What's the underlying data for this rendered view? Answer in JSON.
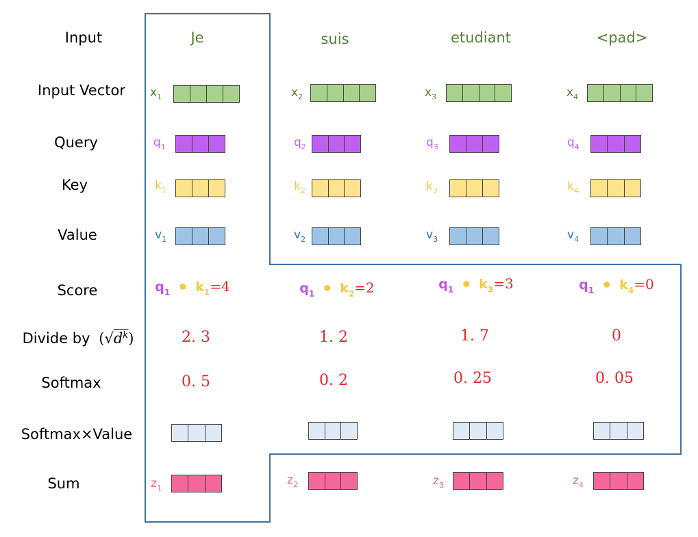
{
  "row_labels": {
    "input": "Input",
    "input_vector": "Input Vector",
    "query": "Query",
    "key": "Key",
    "value": "Value",
    "score": "Score",
    "divide_by": "Divide by",
    "softmax": "Softmax",
    "softmax_value": "Softmax×Value",
    "sum": "Sum"
  },
  "sqrt_expr": {
    "open": "(",
    "radical": "√",
    "base": "d",
    "exp": "k",
    "close": ")"
  },
  "colors": {
    "input_vector": "#a9d18e",
    "query": "#c060f0",
    "key": "#ffe28c",
    "value": "#9dc3e6",
    "softmax_value": "#deebf7",
    "sum": "#f4679a",
    "word": "#548235",
    "number": "#e8262a",
    "outline": "#41719c"
  },
  "columns": [
    {
      "word": "Je",
      "x": "x",
      "x_sub": "1",
      "q": "q",
      "q_sub": "1",
      "k": "k",
      "k_sub": "1",
      "v": "v",
      "v_sub": "1",
      "score_q": "q",
      "score_q_sub": "1",
      "score_k": "k",
      "score_k_sub": "1",
      "score_eq": "=4",
      "divided": "2. 3",
      "softmax": "0. 5",
      "z": "z",
      "z_sub": "1"
    },
    {
      "word": "suis",
      "x": "x",
      "x_sub": "2",
      "q": "q",
      "q_sub": "2",
      "k": "k",
      "k_sub": "2",
      "v": "v",
      "v_sub": "2",
      "score_q": "q",
      "score_q_sub": "1",
      "score_k": "k",
      "score_k_sub": "2",
      "score_eq": "=2",
      "divided": "1. 2",
      "softmax": "0. 2",
      "z": "z",
      "z_sub": "2"
    },
    {
      "word": "etudiant",
      "x": "x",
      "x_sub": "3",
      "q": "q",
      "q_sub": "3",
      "k": "k",
      "k_sub": "3",
      "v": "v",
      "v_sub": "3",
      "score_q": "q",
      "score_q_sub": "1",
      "score_k": "k",
      "score_k_sub": "3",
      "score_eq": "=3",
      "divided": "1. 7",
      "softmax": "0. 25",
      "z": "z",
      "z_sub": "3"
    },
    {
      "word": "<pad>",
      "x": "x",
      "x_sub": "4",
      "q": "q",
      "q_sub": "4",
      "k": "k",
      "k_sub": "4",
      "v": "v",
      "v_sub": "4",
      "score_q": "q",
      "score_q_sub": "1",
      "score_k": "k",
      "score_k_sub": "4",
      "score_eq": "=0",
      "divided": "0",
      "softmax": "0. 05",
      "z": "z",
      "z_sub": "4"
    }
  ]
}
